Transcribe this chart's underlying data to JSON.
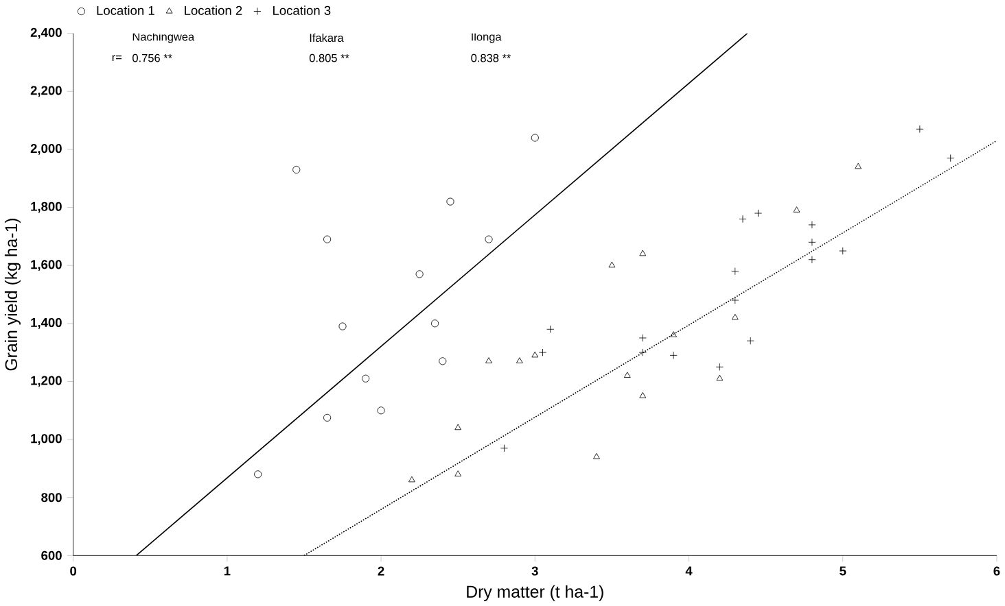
{
  "chart_data": {
    "type": "scatter",
    "xlabel": "Dry matter (t ha-1)",
    "ylabel": "Grain yield (kg ha-1)",
    "xlim": [
      0,
      6
    ],
    "ylim": [
      600,
      2400
    ],
    "xticks": [
      0,
      1,
      2,
      3,
      4,
      5,
      6
    ],
    "yticks": [
      {
        "value": 600,
        "label": "600"
      },
      {
        "value": 800,
        "label": "800"
      },
      {
        "value": 1000,
        "label": "1,000"
      },
      {
        "value": 1200,
        "label": "1,200"
      },
      {
        "value": 1400,
        "label": "1,400"
      },
      {
        "value": 1600,
        "label": "1,600"
      },
      {
        "value": 1800,
        "label": "1,800"
      },
      {
        "value": 2000,
        "label": "2,000"
      },
      {
        "value": 2200,
        "label": "2,200"
      },
      {
        "value": 2400,
        "label": "2,400"
      }
    ],
    "grid": false,
    "legend": "top left",
    "annotations": [
      "Nachingwea",
      "Ifakara",
      "Ilonga",
      "r=",
      "0.756 **",
      "0.805 **",
      "0.838 **"
    ],
    "series": [
      {
        "name": "Location 1",
        "color": "#000000",
        "marker": "circle",
        "x": [
          1.2,
          1.65,
          1.65,
          2.0,
          2.4,
          1.75,
          1.9,
          2.35,
          3.0,
          2.7,
          2.45,
          1.45,
          2.25
        ],
        "values": [
          880,
          1075,
          1690,
          1100,
          1270,
          1390,
          1210,
          1400,
          2040,
          1690,
          1820,
          1930,
          1570
        ]
      },
      {
        "name": "Location 2",
        "color": "#000000",
        "marker": "triangle",
        "x": [
          2.5,
          2.5,
          2.2,
          2.7,
          3.0,
          3.6,
          3.9,
          3.4,
          3.7,
          4.2,
          4.3,
          4.7,
          5.1,
          3.7,
          3.5,
          2.9
        ],
        "values": [
          1040,
          880,
          860,
          1270,
          1290,
          1220,
          1360,
          940,
          1150,
          1210,
          1420,
          1790,
          1940,
          1640,
          1600,
          1270
        ]
      },
      {
        "name": "Location 3",
        "color": "#000000",
        "marker": "cross",
        "x": [
          2.8,
          3.1,
          3.05,
          3.7,
          3.7,
          3.9,
          4.2,
          4.3,
          4.3,
          4.4,
          4.35,
          4.45,
          4.8,
          4.8,
          5.0,
          5.5,
          5.7,
          4.8
        ],
        "values": [
          970,
          1380,
          1300,
          1350,
          1300,
          1290,
          1250,
          1580,
          1480,
          1340,
          1760,
          1780,
          1620,
          1740,
          1650,
          2070,
          1970,
          1680
        ]
      },
      {
        "type": "line",
        "color": "#000000",
        "line_style": "solid",
        "x": [
          0.41,
          4.38
        ],
        "values": [
          600,
          2400
        ]
      },
      {
        "type": "line",
        "color": "#000000",
        "line_style": "dotted",
        "x": [
          1.5,
          6
        ],
        "values": [
          600,
          2030
        ]
      }
    ]
  }
}
